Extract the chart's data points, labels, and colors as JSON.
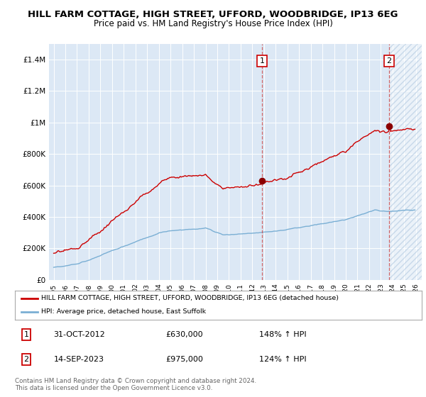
{
  "title": "HILL FARM COTTAGE, HIGH STREET, UFFORD, WOODBRIDGE, IP13 6EG",
  "subtitle": "Price paid vs. HM Land Registry's House Price Index (HPI)",
  "title_fontsize": 9.5,
  "subtitle_fontsize": 8.5,
  "ylim": [
    0,
    1500000
  ],
  "yticks": [
    0,
    200000,
    400000,
    600000,
    800000,
    1000000,
    1200000,
    1400000
  ],
  "ytick_labels": [
    "£0",
    "£200K",
    "£400K",
    "£600K",
    "£800K",
    "£1M",
    "£1.2M",
    "£1.4M"
  ],
  "background_color": "#dce8f5",
  "hatch_color": "#c8d8ec",
  "red_color": "#cc0000",
  "blue_color": "#7aafd4",
  "marker_color": "#8b0000",
  "sale1_year": 2012.83,
  "sale1_value": 630000,
  "sale2_year": 2023.71,
  "sale2_value": 975000,
  "legend_house": "HILL FARM COTTAGE, HIGH STREET, UFFORD, WOODBRIDGE, IP13 6EG (detached house)",
  "legend_hpi": "HPI: Average price, detached house, East Suffolk",
  "annotation1_text": "1",
  "annotation2_text": "2",
  "footer_line1": "Contains HM Land Registry data © Crown copyright and database right 2024.",
  "footer_line2": "This data is licensed under the Open Government Licence v3.0.",
  "table_row1": [
    "1",
    "31-OCT-2012",
    "£630,000",
    "148% ↑ HPI"
  ],
  "table_row2": [
    "2",
    "14-SEP-2023",
    "£975,000",
    "124% ↑ HPI"
  ],
  "xlim_left": 1994.6,
  "xlim_right": 2026.5
}
